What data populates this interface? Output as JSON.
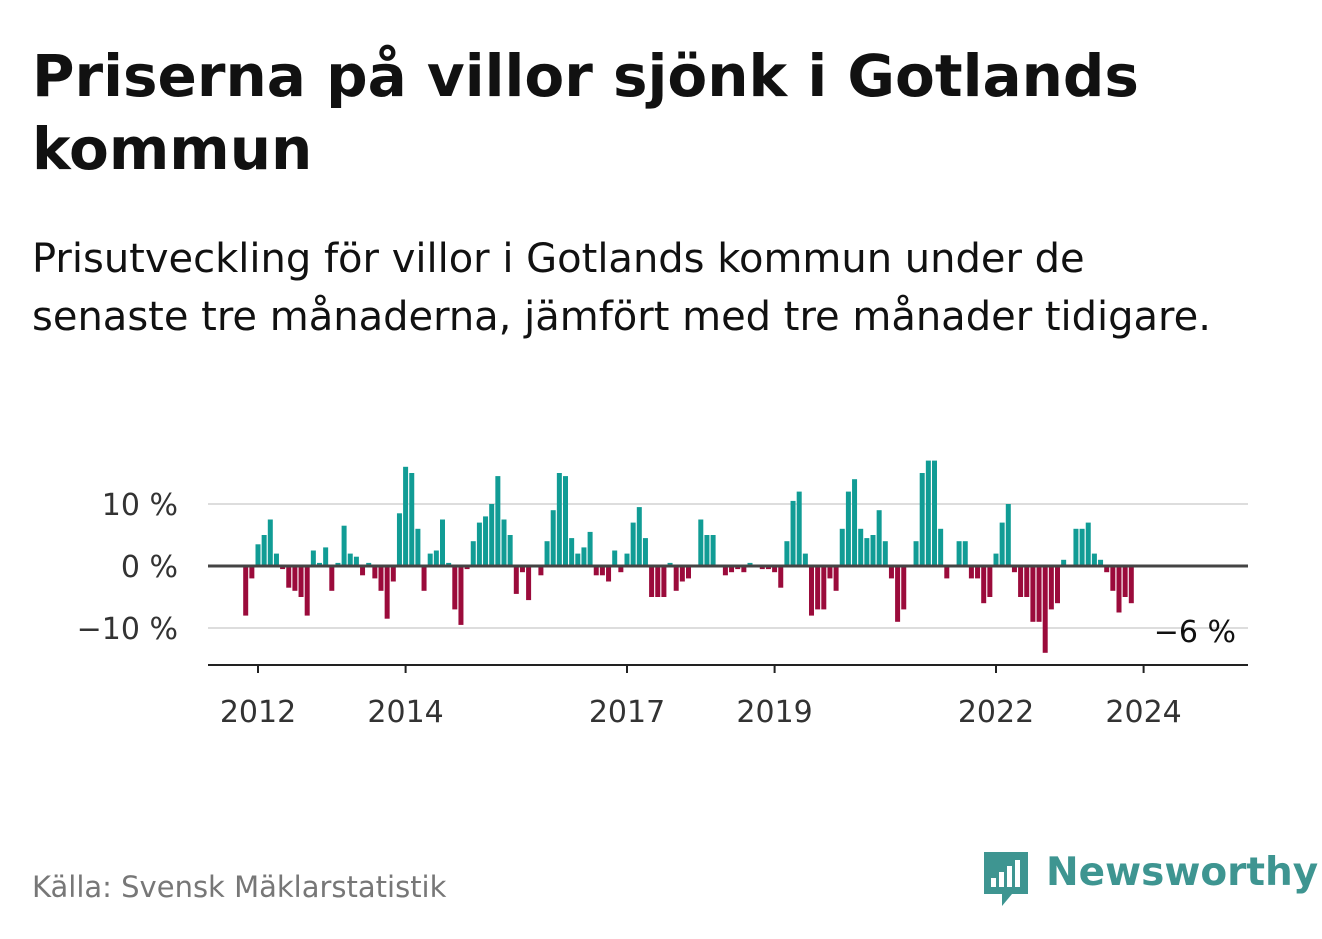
{
  "title": "Priserna på villor sjönk i Gotlands kommun",
  "subtitle": "Prisutveckling för villor i Gotlands kommun under de senaste tre månaderna, jämfört med tre månader tidigare.",
  "source": "Källa: Svensk Mäklarstatistik",
  "brand": {
    "name": "Newsworthy",
    "icon": "bar-chart-speech-bubble-icon",
    "color": "#3e9591"
  },
  "colors": {
    "positive": "#119c95",
    "negative": "#9b0b3b",
    "grid": "#dddddd",
    "axis": "#444444"
  },
  "chart_data": {
    "type": "bar",
    "title": "",
    "xlabel": "",
    "ylabel": "",
    "unit": "%",
    "ylim": [
      -16,
      18
    ],
    "yticks": [
      {
        "value": 10,
        "label": "10 %"
      },
      {
        "value": 0,
        "label": "0 %"
      },
      {
        "value": -10,
        "label": "−10 %"
      }
    ],
    "xticks": [
      {
        "label": "2012",
        "x": "2012-01"
      },
      {
        "label": "2014",
        "x": "2014-01"
      },
      {
        "label": "2017",
        "x": "2017-01"
      },
      {
        "label": "2019",
        "x": "2019-01"
      },
      {
        "label": "2022",
        "x": "2022-01"
      },
      {
        "label": "2024",
        "x": "2024-01"
      }
    ],
    "grid": true,
    "start": "2011-11",
    "end": "2024-03",
    "last_label": "−6 %",
    "values": [
      -8,
      -2,
      3.5,
      5,
      7.5,
      2,
      -0.5,
      -3.5,
      -4,
      -5,
      -8,
      2.5,
      0.5,
      3,
      -4,
      0.5,
      6.5,
      2,
      1.5,
      -1.5,
      0.5,
      -2,
      -4,
      -8.5,
      -2.5,
      8.5,
      16,
      15,
      6,
      -4,
      2,
      2.5,
      7.5,
      0.5,
      -7,
      -9.5,
      -0.5,
      4,
      7,
      8,
      10,
      14.5,
      7.5,
      5,
      -4.5,
      -1,
      -5.5,
      0,
      -1.5,
      4,
      9,
      15,
      14.5,
      4.5,
      2,
      3,
      5.5,
      -1.5,
      -1.5,
      -2.5,
      2.5,
      -1,
      2,
      7,
      9.5,
      4.5,
      -5,
      -5,
      -5,
      0.5,
      -4,
      -2.5,
      -2,
      0,
      7.5,
      5,
      5,
      0,
      -1.5,
      -1,
      -0.5,
      -1,
      0.5,
      0,
      -0.5,
      -0.5,
      -1,
      -3.5,
      4,
      10.5,
      12,
      2,
      -8,
      -7,
      -7,
      -2,
      -4,
      6,
      12,
      14,
      6,
      4.5,
      5,
      9,
      4,
      -2,
      -9,
      -7,
      0,
      4,
      15,
      17,
      17,
      6,
      -2,
      0,
      4,
      4,
      -2,
      -2,
      -6,
      -5,
      2,
      7,
      10,
      -1,
      -5,
      -5,
      -9,
      -9,
      -14,
      -7,
      -6,
      1,
      0,
      6,
      6,
      7,
      2,
      1,
      -1,
      -4,
      -7.5,
      -5,
      -6
    ]
  }
}
